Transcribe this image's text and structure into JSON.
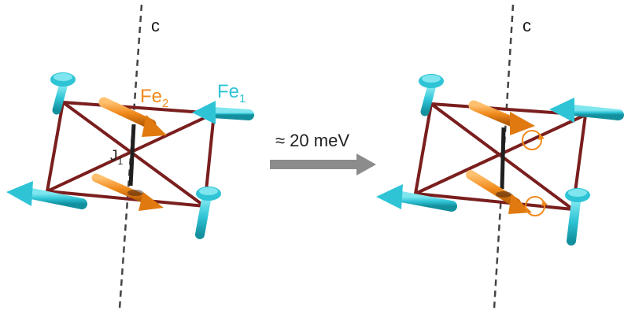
{
  "axis_label": "c",
  "fe2": {
    "base": "Fe",
    "sub": "2"
  },
  "fe1": {
    "base": "Fe",
    "sub": "1"
  },
  "exchange": {
    "base": "J",
    "sub": "1"
  },
  "transition_energy": "≈ 20 meV",
  "colors": {
    "fe1_spin": "#2ec4d6",
    "fe2_spin": "#f08a1c",
    "bond": "#7a1e1e",
    "axis": "#444444",
    "transition_arrow": "#8c8c8c"
  }
}
